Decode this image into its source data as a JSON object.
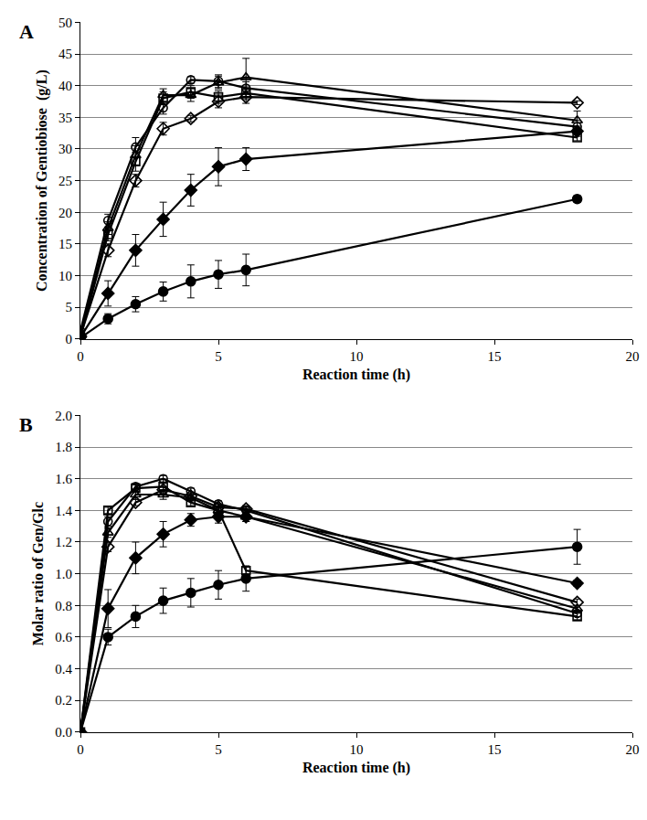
{
  "chart_data": [
    {
      "type": "line",
      "panel_label": "A",
      "x_label": "Reaction time (h)",
      "y_label": "Concentration of Gentiobiose  (g/L)",
      "xlim": [
        0,
        20
      ],
      "xticks": [
        0,
        5,
        10,
        15,
        20
      ],
      "ylim": [
        0,
        50
      ],
      "yticks": [
        0,
        5,
        10,
        15,
        20,
        25,
        30,
        35,
        40,
        45,
        50
      ],
      "grid": "y",
      "x": [
        0,
        1,
        2,
        3,
        4,
        5,
        6,
        18
      ],
      "series": [
        {
          "marker": "open-circle",
          "color": "#000000",
          "line_style": "solid",
          "values": [
            1.3,
            18.7,
            30.3,
            36.5,
            40.9,
            40.7,
            39.6,
            33.5
          ],
          "errors": [
            0,
            1.0,
            1.5,
            1.0,
            0.5,
            1.0,
            1.0,
            1.0
          ]
        },
        {
          "marker": "open-triangle",
          "color": "#000000",
          "line_style": "solid",
          "values": [
            0.5,
            17.5,
            29.0,
            38.5,
            38.5,
            40.5,
            41.3,
            34.5
          ],
          "errors": [
            0,
            1.0,
            1.5,
            1.0,
            1.0,
            1.0,
            3.0,
            1.5
          ]
        },
        {
          "marker": "open-square",
          "color": "#000000",
          "line_style": "solid",
          "values": [
            0.3,
            16.5,
            28.0,
            38.0,
            39.0,
            38.2,
            38.8,
            31.8
          ],
          "errors": [
            0,
            1.0,
            1.5,
            1.0,
            1.0,
            1.0,
            1.0,
            0.5
          ]
        },
        {
          "marker": "open-diamond",
          "color": "#000000",
          "line_style": "solid",
          "values": [
            0.5,
            14.0,
            25.0,
            33.2,
            34.8,
            37.5,
            38.2,
            37.3
          ],
          "errors": [
            0,
            1.0,
            1.0,
            1.0,
            0.5,
            1.0,
            1.0,
            0.3
          ]
        },
        {
          "marker": "filled-diamond",
          "color": "#000000",
          "line_style": "solid",
          "values": [
            0.3,
            7.2,
            14.0,
            18.9,
            23.5,
            27.2,
            28.4,
            32.8
          ],
          "errors": [
            0,
            2.0,
            2.5,
            2.7,
            2.5,
            3.0,
            1.8,
            0.8
          ]
        },
        {
          "marker": "filled-circle",
          "color": "#000000",
          "line_style": "solid",
          "values": [
            0.2,
            3.2,
            5.5,
            7.5,
            9.1,
            10.2,
            10.9,
            22.1
          ],
          "errors": [
            0,
            0.8,
            1.2,
            1.5,
            2.6,
            2.2,
            2.5,
            0.5
          ]
        }
      ]
    },
    {
      "type": "line",
      "panel_label": "B",
      "x_label": "Reaction time (h)",
      "y_label": "Molar ratio of Gen/Glc",
      "xlim": [
        0,
        20
      ],
      "xticks": [
        0,
        5,
        10,
        15,
        20
      ],
      "ylim": [
        0,
        2.0
      ],
      "yticks": [
        {
          "value": 0,
          "label": "0.0"
        },
        {
          "value": 0.2,
          "label": "0.2"
        },
        {
          "value": 0.4,
          "label": "0.4"
        },
        {
          "value": 0.6,
          "label": "0.6"
        },
        {
          "value": 0.8,
          "label": "0.8"
        },
        {
          "value": 1.0,
          "label": "1.0"
        },
        {
          "value": 1.2,
          "label": "1.2"
        },
        {
          "value": 1.4,
          "label": "1.4"
        },
        {
          "value": 1.6,
          "label": "1.6"
        },
        {
          "value": 1.8,
          "label": "1.8"
        },
        {
          "value": 2.0,
          "label": "2.0"
        }
      ],
      "grid": "y",
      "x": [
        0,
        1,
        2,
        3,
        4,
        5,
        6,
        18
      ],
      "series": [
        {
          "marker": "open-circle",
          "color": "#000000",
          "line_style": "solid",
          "values": [
            0,
            1.33,
            1.55,
            1.6,
            1.52,
            1.44,
            1.4,
            0.75
          ],
          "errors": [
            0,
            0.03,
            0.02,
            0.02,
            0.02,
            0.02,
            0.02,
            0.02
          ]
        },
        {
          "marker": "open-triangle",
          "color": "#000000",
          "line_style": "solid",
          "values": [
            0,
            1.26,
            1.5,
            1.5,
            1.48,
            1.4,
            1.36,
            0.78
          ],
          "errors": [
            0,
            0.03,
            0.03,
            0.03,
            0.02,
            0.03,
            0.03,
            0.02
          ]
        },
        {
          "marker": "open-square",
          "color": "#000000",
          "line_style": "solid",
          "values": [
            0,
            1.4,
            1.54,
            1.55,
            1.45,
            1.4,
            1.02,
            0.73
          ],
          "errors": [
            0,
            0.02,
            0.02,
            0.02,
            0.02,
            0.02,
            0.02,
            0.02
          ]
        },
        {
          "marker": "open-diamond",
          "color": "#000000",
          "line_style": "solid",
          "values": [
            0,
            1.17,
            1.45,
            1.53,
            1.49,
            1.42,
            1.41,
            0.82
          ],
          "errors": [
            0,
            0.03,
            0.02,
            0.02,
            0.02,
            0.02,
            0.02,
            0.02
          ]
        },
        {
          "marker": "filled-diamond",
          "color": "#000000",
          "line_style": "solid",
          "values": [
            0,
            0.78,
            1.1,
            1.25,
            1.34,
            1.36,
            1.36,
            0.94
          ],
          "errors": [
            0,
            0.12,
            0.1,
            0.08,
            0.04,
            0.04,
            0.03,
            0.02
          ]
        },
        {
          "marker": "filled-circle",
          "color": "#000000",
          "line_style": "solid",
          "values": [
            0,
            0.6,
            0.73,
            0.83,
            0.88,
            0.93,
            0.97,
            1.17
          ],
          "errors": [
            0,
            0.05,
            0.07,
            0.08,
            0.09,
            0.09,
            0.08,
            0.11
          ]
        }
      ]
    }
  ]
}
